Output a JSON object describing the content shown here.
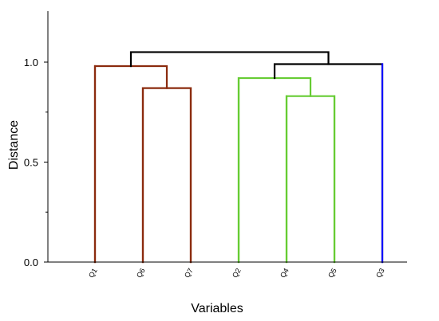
{
  "chart_data": {
    "type": "dendrogram",
    "xlabel": "Variables",
    "ylabel": "Distance",
    "ylim": [
      0,
      1.25
    ],
    "yticks": [
      0.0,
      0.5,
      1.0
    ],
    "ytick_labels": [
      "0.0",
      "0.5",
      "1.0"
    ],
    "leaves": [
      "Q1",
      "Q6",
      "Q7",
      "Q2",
      "Q4",
      "Q5",
      "Q3"
    ],
    "merges": [
      {
        "left": "Q6",
        "right": "Q7",
        "height": 0.87,
        "color": "#8b2b0e"
      },
      {
        "left": "Q1",
        "right": "Q6+Q7",
        "height": 0.98,
        "color": "#8b2b0e"
      },
      {
        "left": "Q4",
        "right": "Q5",
        "height": 0.83,
        "color": "#66cc33"
      },
      {
        "left": "Q2",
        "right": "Q4+Q5",
        "height": 0.92,
        "color": "#66cc33"
      },
      {
        "left": "Q2+Q4+Q5",
        "right": "Q3",
        "height": 0.99,
        "color": "#000000"
      },
      {
        "left": "Q1+Q6+Q7",
        "right": "Q2+Q4+Q5+Q3",
        "height": 1.05,
        "color": "#000000"
      }
    ],
    "leaf_colors": {
      "Q1": "#8b2b0e",
      "Q6": "#8b2b0e",
      "Q7": "#8b2b0e",
      "Q2": "#66cc33",
      "Q4": "#66cc33",
      "Q5": "#66cc33",
      "Q3": "#0000ff"
    },
    "grid": false,
    "legend": "none"
  }
}
